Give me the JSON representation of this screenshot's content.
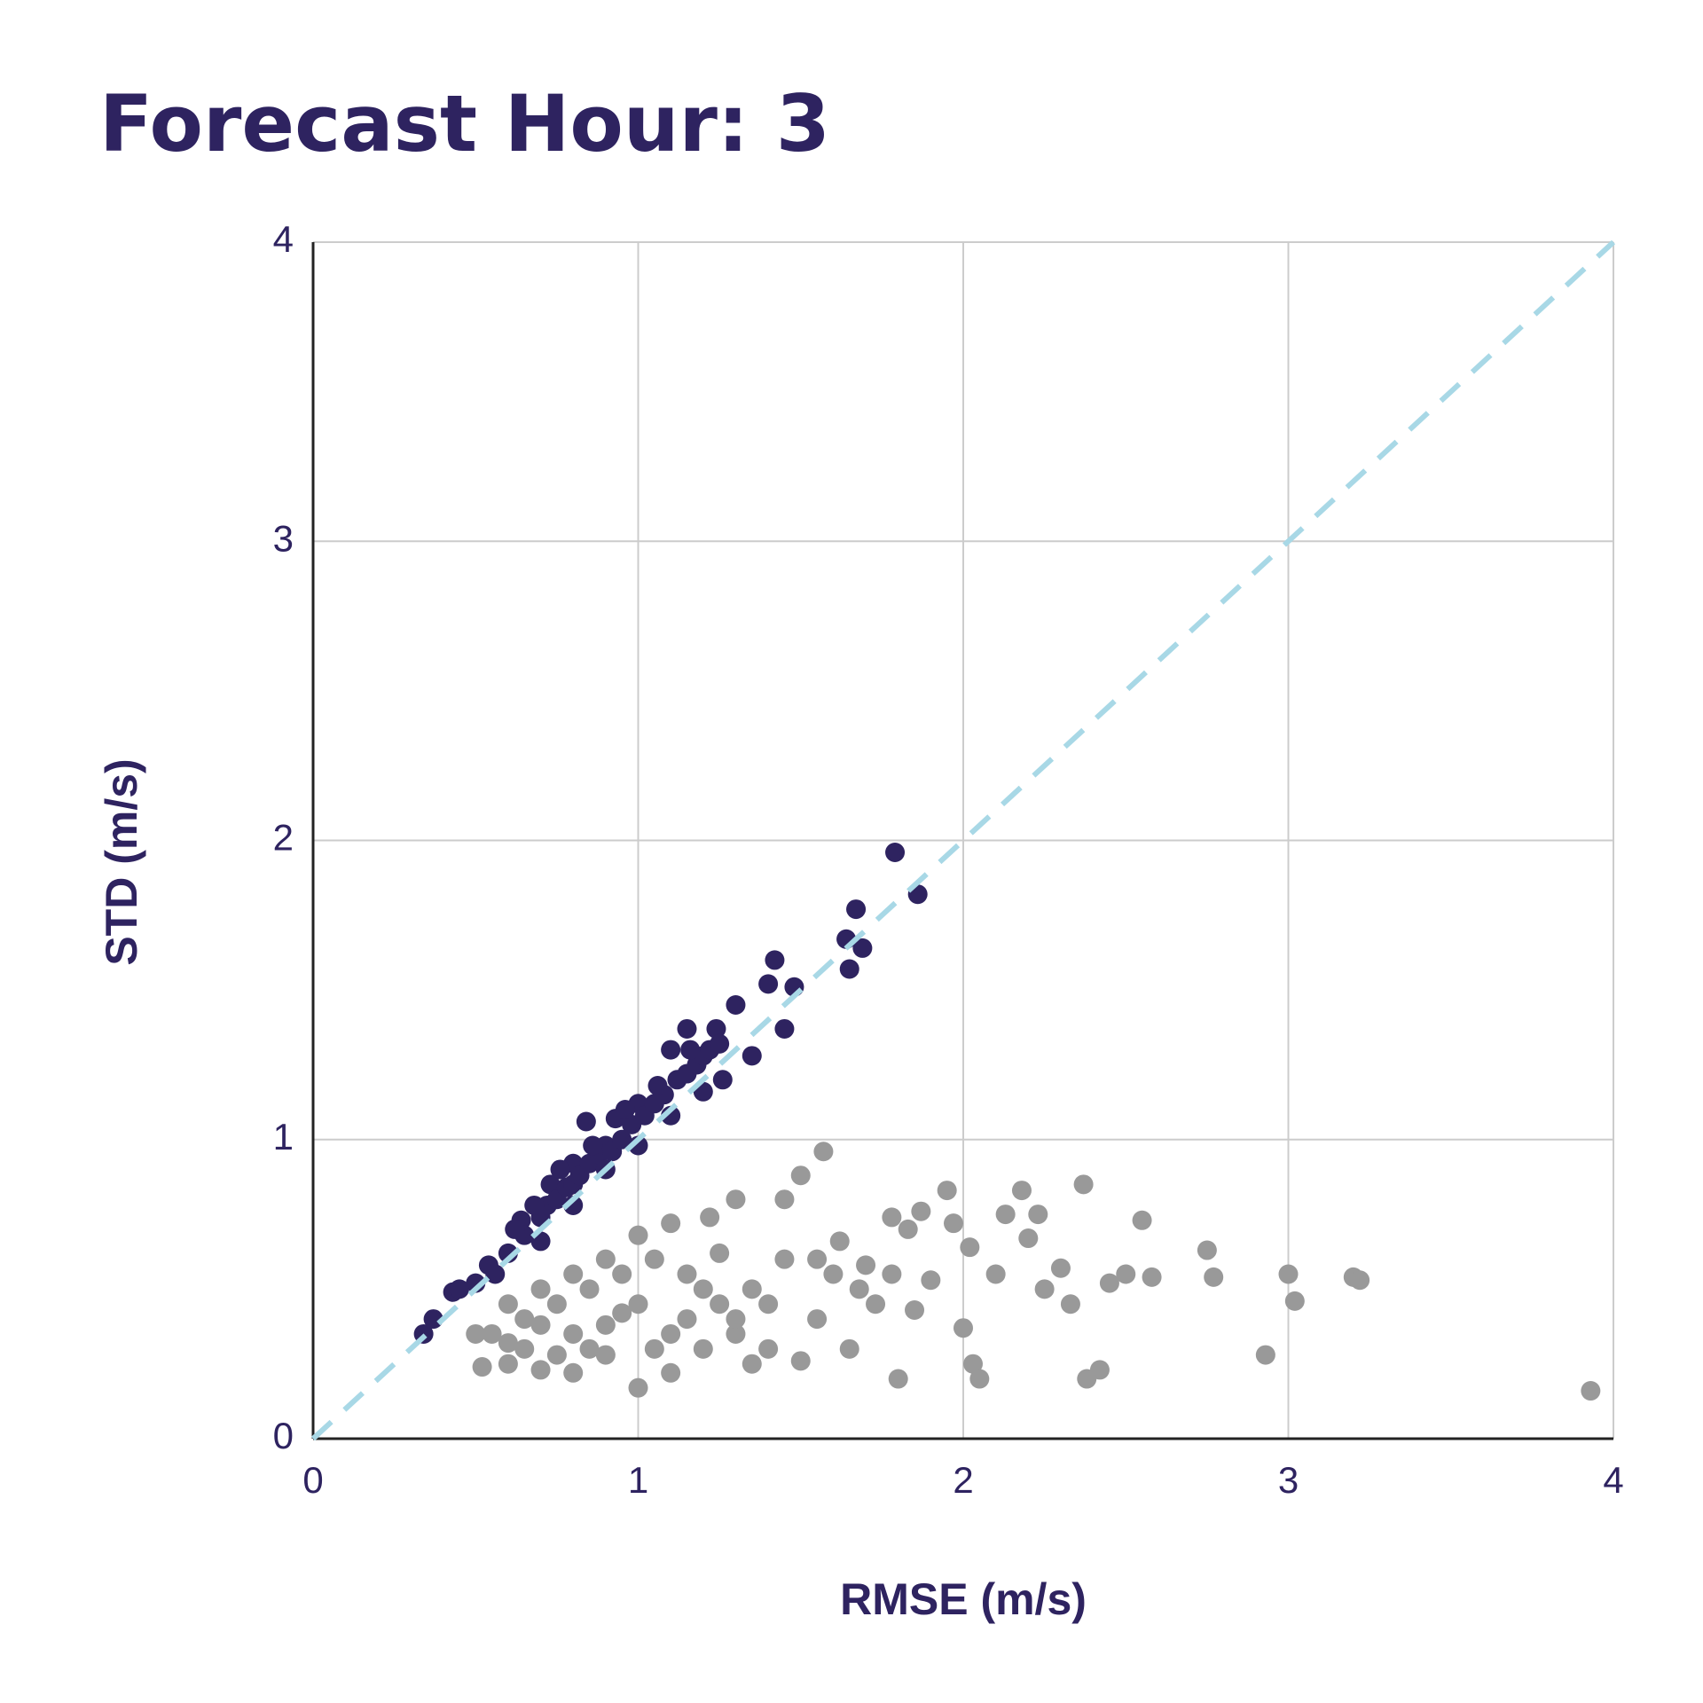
{
  "chart_data": {
    "type": "scatter",
    "title": "Forecast Hour: 3",
    "x_label": "RMSE (m/s)",
    "y_label": "STD (m/s)",
    "xlim": [
      0,
      4
    ],
    "ylim": [
      0,
      4
    ],
    "xticks": [
      0,
      1,
      2,
      3,
      4
    ],
    "yticks": [
      0,
      1,
      2,
      3,
      4
    ],
    "grid": true,
    "diagonal": {
      "color": "#a8d8e6",
      "dashed": true
    },
    "series": [
      {
        "color": "#999999",
        "x": [
          1.57,
          1.5,
          1.45,
          1.3,
          1.22,
          1.1,
          1.0,
          0.9,
          0.8,
          0.7,
          0.6,
          0.5,
          0.52,
          0.6,
          0.65,
          0.7,
          0.75,
          0.8,
          0.85,
          0.9,
          0.95,
          1.0,
          1.05,
          1.1,
          1.15,
          1.2,
          1.25,
          1.3,
          1.35,
          1.4,
          1.45,
          1.5,
          1.55,
          1.6,
          1.62,
          1.65,
          1.7,
          1.73,
          1.78,
          1.8,
          1.83,
          1.87,
          1.9,
          1.95,
          1.97,
          2.0,
          2.02,
          2.03,
          2.05,
          2.1,
          2.13,
          2.18,
          2.2,
          2.23,
          2.25,
          2.3,
          2.33,
          2.37,
          2.38,
          2.42,
          2.45,
          2.5,
          2.55,
          2.58,
          2.75,
          2.77,
          2.93,
          3.0,
          3.02,
          3.2,
          3.22,
          3.93,
          0.55,
          0.65,
          0.75,
          0.85,
          0.95,
          1.05,
          1.15,
          1.25,
          1.35,
          0.8,
          0.9,
          1.0,
          1.1,
          1.2,
          1.3,
          1.4,
          0.7,
          0.6,
          1.55,
          1.68,
          1.78,
          1.85
        ],
        "values": [
          0.96,
          0.88,
          0.8,
          0.8,
          0.74,
          0.72,
          0.68,
          0.6,
          0.55,
          0.5,
          0.45,
          0.35,
          0.24,
          0.25,
          0.3,
          0.23,
          0.28,
          0.22,
          0.3,
          0.38,
          0.42,
          0.17,
          0.3,
          0.22,
          0.4,
          0.5,
          0.45,
          0.35,
          0.25,
          0.3,
          0.6,
          0.26,
          0.4,
          0.55,
          0.66,
          0.3,
          0.58,
          0.45,
          0.74,
          0.2,
          0.7,
          0.76,
          0.53,
          0.83,
          0.72,
          0.37,
          0.64,
          0.25,
          0.2,
          0.55,
          0.75,
          0.83,
          0.67,
          0.75,
          0.5,
          0.57,
          0.45,
          0.85,
          0.2,
          0.23,
          0.52,
          0.55,
          0.73,
          0.54,
          0.63,
          0.54,
          0.28,
          0.55,
          0.46,
          0.54,
          0.53,
          0.16,
          0.35,
          0.4,
          0.45,
          0.5,
          0.55,
          0.6,
          0.55,
          0.62,
          0.5,
          0.35,
          0.28,
          0.45,
          0.35,
          0.3,
          0.4,
          0.45,
          0.38,
          0.32,
          0.6,
          0.5,
          0.55,
          0.43
        ]
      },
      {
        "color": "#2e2360",
        "x": [
          0.34,
          0.37,
          0.43,
          0.54,
          0.64,
          0.73,
          0.84,
          0.8,
          0.93,
          1.0,
          1.1,
          1.15,
          1.24,
          1.3,
          1.4,
          1.42,
          1.48,
          1.45,
          1.35,
          1.65,
          1.67,
          1.69,
          1.79,
          1.86,
          1.64,
          0.6,
          0.65,
          0.7,
          0.72,
          0.75,
          0.78,
          0.8,
          0.82,
          0.85,
          0.88,
          0.9,
          0.92,
          0.95,
          0.98,
          1.02,
          1.05,
          1.08,
          1.12,
          1.15,
          1.18,
          1.2,
          1.22,
          1.25,
          0.7,
          0.8,
          0.9,
          1.0,
          1.1,
          1.2,
          1.26,
          0.62,
          0.68,
          0.76,
          0.86,
          0.96,
          1.06,
          1.16,
          0.5,
          0.45,
          0.56
        ],
        "values": [
          0.35,
          0.4,
          0.49,
          0.58,
          0.73,
          0.85,
          1.06,
          0.92,
          1.07,
          1.12,
          1.3,
          1.37,
          1.37,
          1.45,
          1.52,
          1.6,
          1.51,
          1.37,
          1.28,
          1.57,
          1.77,
          1.64,
          1.96,
          1.82,
          1.67,
          0.62,
          0.68,
          0.74,
          0.78,
          0.8,
          0.84,
          0.85,
          0.88,
          0.92,
          0.95,
          0.98,
          0.96,
          1.0,
          1.05,
          1.08,
          1.12,
          1.15,
          1.2,
          1.22,
          1.25,
          1.28,
          1.3,
          1.32,
          0.66,
          0.78,
          0.9,
          0.98,
          1.08,
          1.16,
          1.2,
          0.7,
          0.78,
          0.9,
          0.98,
          1.1,
          1.18,
          1.3,
          0.52,
          0.5,
          0.55
        ]
      }
    ]
  }
}
